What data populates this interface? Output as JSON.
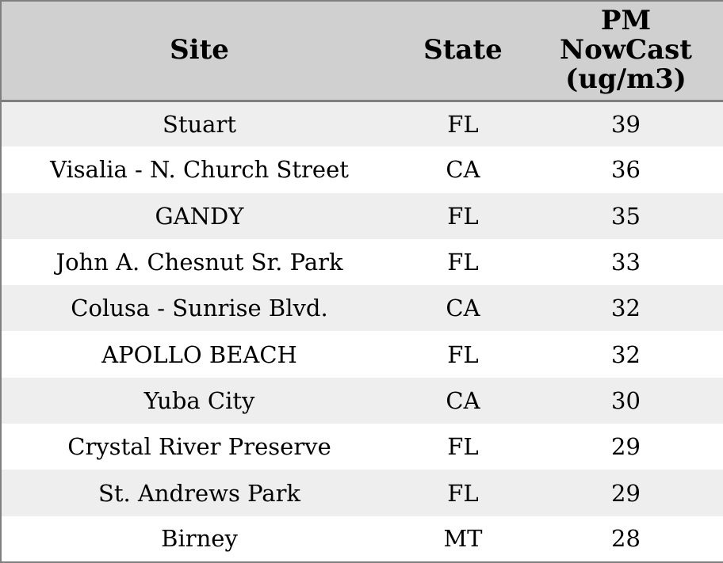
{
  "chart_data": {
    "type": "table",
    "columns": [
      "Site",
      "State",
      "PM NowCast (ug/m3)"
    ],
    "rows": [
      [
        "Stuart",
        "FL",
        "39"
      ],
      [
        "Visalia - N. Church Street",
        "CA",
        "36"
      ],
      [
        "GANDY",
        "FL",
        "35"
      ],
      [
        "John A. Chesnut Sr. Park",
        "FL",
        "33"
      ],
      [
        "Colusa - Sunrise Blvd.",
        "CA",
        "32"
      ],
      [
        "APOLLO BEACH",
        "FL",
        "32"
      ],
      [
        "Yuba City",
        "CA",
        "30"
      ],
      [
        "Crystal River Preserve",
        "FL",
        "29"
      ],
      [
        "St. Andrews Park",
        "FL",
        "29"
      ],
      [
        "Birney",
        "MT",
        "28"
      ]
    ],
    "layout": {
      "grid": "off",
      "row_striping": "on",
      "alignment": "center"
    }
  },
  "colors": {
    "header_bg": "#d0d0d0",
    "row_alt_bg": "#eeeeee",
    "row_bg": "#ffffff",
    "border": "#7f7f7f",
    "text": "#000000"
  }
}
